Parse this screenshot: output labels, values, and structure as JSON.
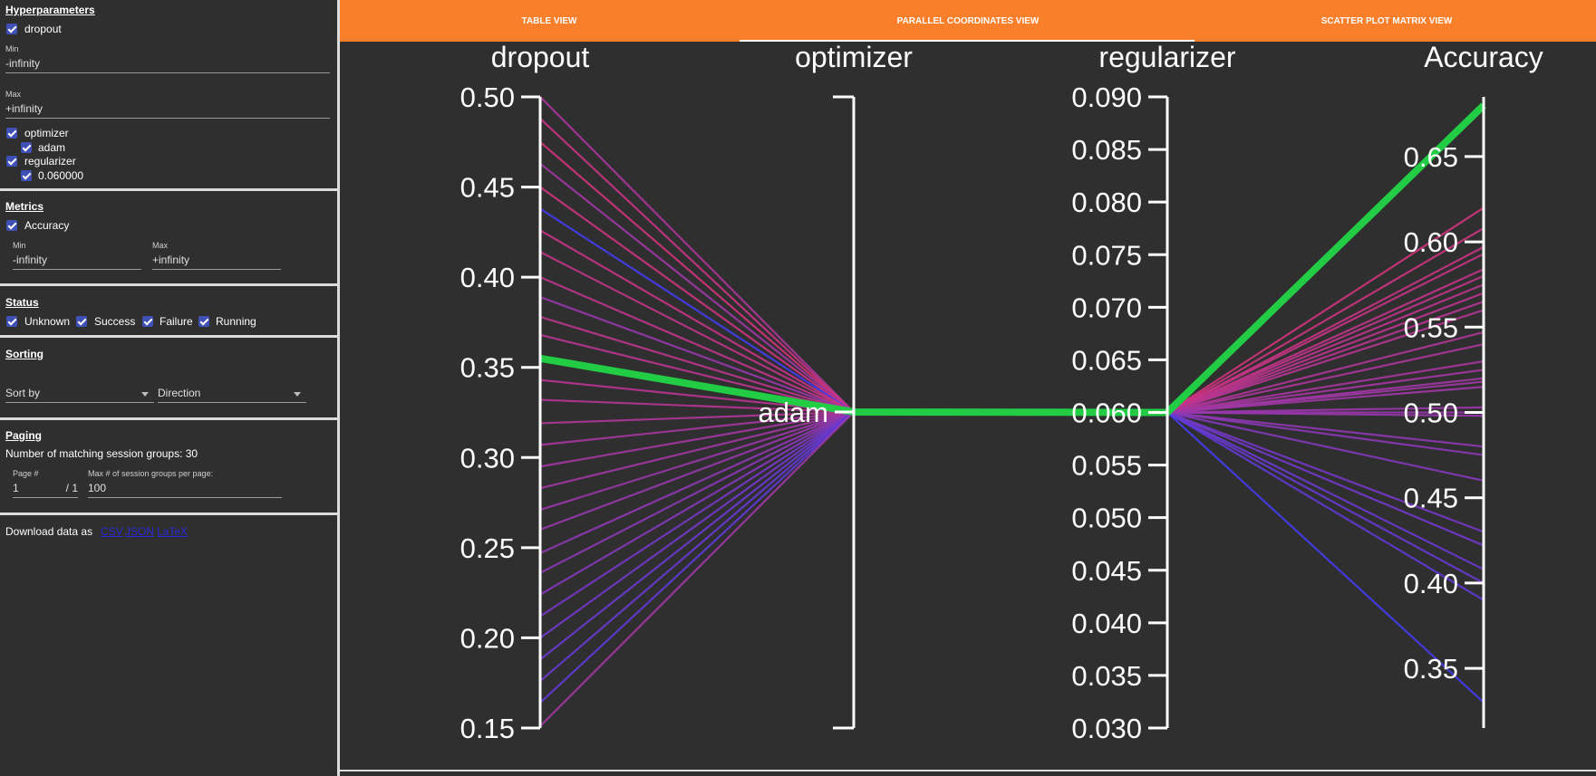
{
  "sidebar": {
    "hyperparameters": {
      "title": "Hyperparameters",
      "dropout_label": "dropout",
      "min_label": "Min",
      "min_value": "-infinity",
      "max_label": "Max",
      "max_value": "+infinity",
      "optimizer_label": "optimizer",
      "optimizer_option": "adam",
      "regularizer_label": "regularizer",
      "regularizer_option": "0.060000"
    },
    "metrics": {
      "title": "Metrics",
      "accuracy_label": "Accuracy",
      "min_label": "Min",
      "min_value": "-infinity",
      "max_label": "Max",
      "max_value": "+infinity"
    },
    "status": {
      "title": "Status",
      "unknown": "Unknown",
      "success": "Success",
      "failure": "Failure",
      "running": "Running"
    },
    "sorting": {
      "title": "Sorting",
      "sort_by": "Sort by",
      "direction": "Direction"
    },
    "paging": {
      "title": "Paging",
      "matching": "Number of matching session groups: 30",
      "page_label": "Page #",
      "page_value": "1",
      "page_total": "/ 1",
      "max_label": "Max # of session groups per page:",
      "max_value": "100"
    },
    "download": {
      "label": "Download data as",
      "csv": "CSV",
      "json": "JSON",
      "latex": "LaTeX"
    }
  },
  "tabs": [
    {
      "label": "TABLE VIEW",
      "active": false
    },
    {
      "label": "PARALLEL COORDINATES VIEW",
      "active": true
    },
    {
      "label": "SCATTER PLOT MATRIX VIEW",
      "active": false
    }
  ],
  "colors": {
    "tab_bar": "#fa7f2a",
    "background": "#2f2f2f",
    "highlight": "#22cc44",
    "checkbox": "#3f51b5"
  },
  "chart_data": {
    "type": "parallel-coordinates",
    "axes": [
      {
        "name": "dropout",
        "range": [
          0.15,
          0.5
        ],
        "ticks": [
          "0.50",
          "0.45",
          "0.40",
          "0.35",
          "0.30",
          "0.25",
          "0.20",
          "0.15"
        ]
      },
      {
        "name": "optimizer",
        "categories": [
          "adam"
        ]
      },
      {
        "name": "regularizer",
        "range": [
          0.03,
          0.09
        ],
        "ticks": [
          "0.090",
          "0.085",
          "0.080",
          "0.075",
          "0.070",
          "0.065",
          "0.060",
          "0.055",
          "0.050",
          "0.045",
          "0.040",
          "0.035",
          "0.030"
        ]
      },
      {
        "name": "Accuracy",
        "range": [
          0.315,
          0.685
        ],
        "ticks": [
          "0.65",
          "0.60",
          "0.55",
          "0.50",
          "0.45",
          "0.40",
          "0.35"
        ]
      }
    ],
    "sessions": [
      {
        "dropout": 0.5,
        "accuracy": 0.54
      },
      {
        "dropout": 0.488,
        "accuracy": 0.597
      },
      {
        "dropout": 0.475,
        "accuracy": 0.62
      },
      {
        "dropout": 0.463,
        "accuracy": 0.518
      },
      {
        "dropout": 0.45,
        "accuracy": 0.608
      },
      {
        "dropout": 0.438,
        "accuracy": 0.33
      },
      {
        "dropout": 0.426,
        "accuracy": 0.593
      },
      {
        "dropout": 0.414,
        "accuracy": 0.584
      },
      {
        "dropout": 0.4,
        "accuracy": 0.58
      },
      {
        "dropout": 0.389,
        "accuracy": 0.5
      },
      {
        "dropout": 0.378,
        "accuracy": 0.575
      },
      {
        "dropout": 0.368,
        "accuracy": 0.57
      },
      {
        "dropout": 0.355,
        "accuracy": 0.68,
        "highlight": true
      },
      {
        "dropout": 0.343,
        "accuracy": 0.565
      },
      {
        "dropout": 0.332,
        "accuracy": 0.56
      },
      {
        "dropout": 0.319,
        "accuracy": 0.547
      },
      {
        "dropout": 0.307,
        "accuracy": 0.53
      },
      {
        "dropout": 0.295,
        "accuracy": 0.525
      },
      {
        "dropout": 0.283,
        "accuracy": 0.52
      },
      {
        "dropout": 0.271,
        "accuracy": 0.503
      },
      {
        "dropout": 0.26,
        "accuracy": 0.498
      },
      {
        "dropout": 0.247,
        "accuracy": 0.48
      },
      {
        "dropout": 0.236,
        "accuracy": 0.475
      },
      {
        "dropout": 0.224,
        "accuracy": 0.46
      },
      {
        "dropout": 0.212,
        "accuracy": 0.43
      },
      {
        "dropout": 0.2,
        "accuracy": 0.422
      },
      {
        "dropout": 0.188,
        "accuracy": 0.408
      },
      {
        "dropout": 0.176,
        "accuracy": 0.4
      },
      {
        "dropout": 0.164,
        "accuracy": 0.39
      },
      {
        "dropout": 0.151,
        "accuracy": 0.515
      }
    ],
    "common": {
      "optimizer": "adam",
      "regularizer": 0.06
    }
  }
}
